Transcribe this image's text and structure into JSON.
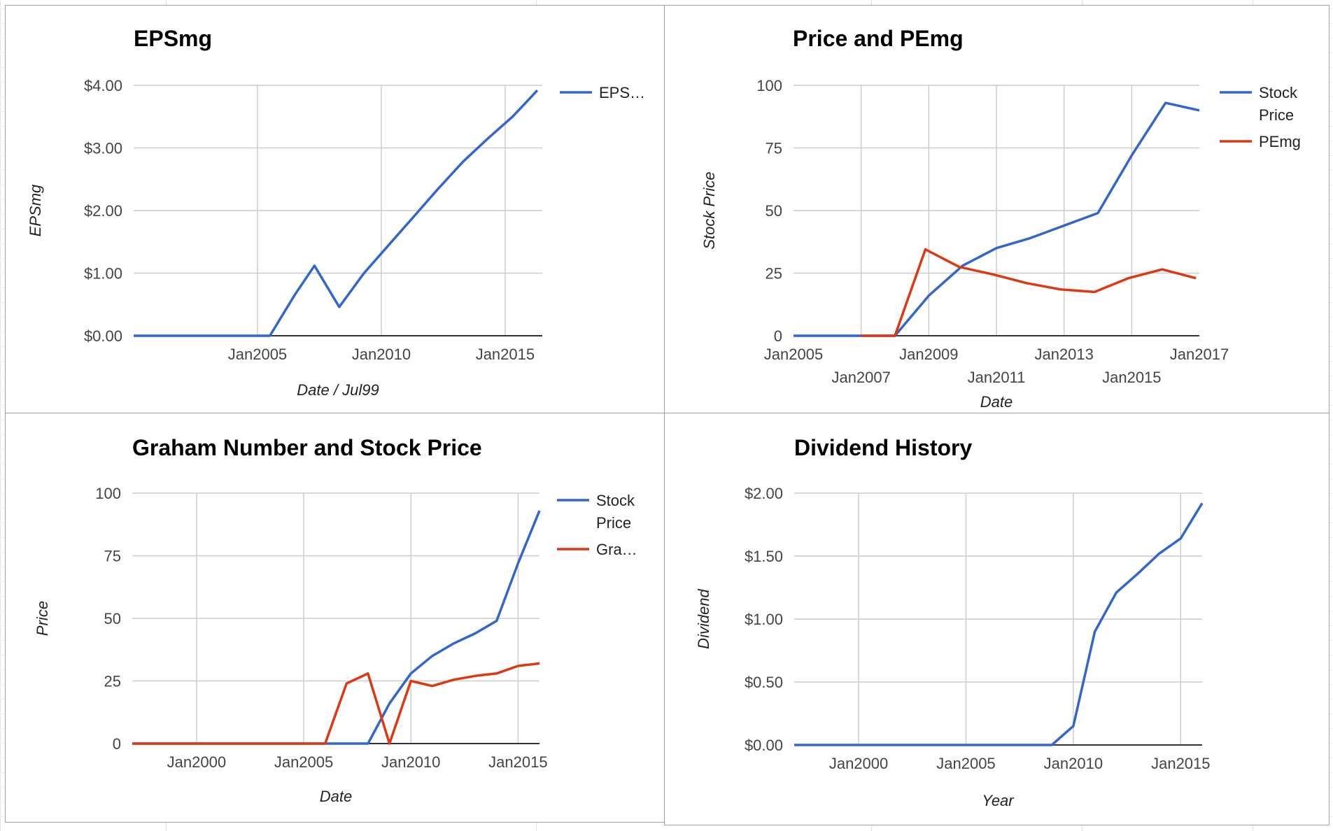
{
  "colors": {
    "blue": "#3366cc",
    "red": "#dc3912",
    "grid": "#cccccc",
    "baseline": "#333333"
  },
  "chart_data": [
    {
      "type": "line",
      "title": "EPSmg",
      "xlabel": "Date / Jul99",
      "ylabel": "EPSmg",
      "xlim": [
        2000,
        2016.5
      ],
      "ylim": [
        0,
        4
      ],
      "x_ticks": [
        {
          "x": 2005,
          "label": "Jan2005"
        },
        {
          "x": 2010,
          "label": "Jan2010"
        },
        {
          "x": 2015,
          "label": "Jan2015"
        }
      ],
      "y_ticks": [
        {
          "y": 0,
          "label": "$0.00"
        },
        {
          "y": 1,
          "label": "$1.00"
        },
        {
          "y": 2,
          "label": "$2.00"
        },
        {
          "y": 3,
          "label": "$3.00"
        },
        {
          "y": 4,
          "label": "$4.00"
        }
      ],
      "grid": true,
      "legend": "right",
      "series": [
        {
          "name": "EPS…",
          "color": "#3366cc",
          "x": [
            2000,
            2001,
            2002,
            2003,
            2004,
            2005,
            2005.5,
            2006.5,
            2007.3,
            2008.3,
            2009.3,
            2010.3,
            2011.3,
            2012.3,
            2013.3,
            2014.3,
            2015.3,
            2016.3
          ],
          "y": [
            0,
            0,
            0,
            0,
            0,
            0,
            0,
            0.65,
            1.12,
            0.46,
            1.0,
            1.45,
            1.9,
            2.35,
            2.78,
            3.15,
            3.5,
            3.92
          ]
        }
      ]
    },
    {
      "type": "line",
      "title": "Price and PEmg",
      "xlabel": "Date",
      "ylabel": "Stock Price",
      "xlim": [
        2005,
        2017
      ],
      "ylim": [
        0,
        100
      ],
      "x_ticks": [
        {
          "x": 2005,
          "label": "Jan2005"
        },
        {
          "x": 2007,
          "label": "Jan2007"
        },
        {
          "x": 2009,
          "label": "Jan2009"
        },
        {
          "x": 2011,
          "label": "Jan2011"
        },
        {
          "x": 2013,
          "label": "Jan2013"
        },
        {
          "x": 2015,
          "label": "Jan2015"
        },
        {
          "x": 2017,
          "label": "Jan2017"
        }
      ],
      "y_ticks": [
        {
          "y": 0,
          "label": "0"
        },
        {
          "y": 25,
          "label": "25"
        },
        {
          "y": 50,
          "label": "50"
        },
        {
          "y": 75,
          "label": "75"
        },
        {
          "y": 100,
          "label": "100"
        }
      ],
      "grid": true,
      "legend": "right",
      "series": [
        {
          "name": "Stock Price",
          "color": "#3366cc",
          "x": [
            2005,
            2006,
            2007,
            2007.5,
            2008,
            2009,
            2010,
            2011,
            2012,
            2013,
            2014,
            2015,
            2016,
            2017
          ],
          "y": [
            0,
            0,
            0,
            0,
            0,
            16,
            28,
            35,
            39,
            44,
            49,
            72,
            93,
            90
          ]
        },
        {
          "name": "PEmg",
          "color": "#dc3912",
          "x": [
            2007,
            2007.5,
            2008,
            2008.9,
            2009.9,
            2010.9,
            2011.9,
            2012.9,
            2013.9,
            2014.9,
            2015.9,
            2016.9
          ],
          "y": [
            0,
            0,
            0,
            34.5,
            27.5,
            24.5,
            21,
            18.5,
            17.5,
            23,
            26.5,
            23
          ]
        }
      ]
    },
    {
      "type": "line",
      "title": "Graham Number and Stock Price",
      "xlabel": "Date",
      "ylabel": "Price",
      "xlim": [
        1997,
        2016
      ],
      "ylim": [
        0,
        100
      ],
      "x_ticks": [
        {
          "x": 2000,
          "label": "Jan2000"
        },
        {
          "x": 2005,
          "label": "Jan2005"
        },
        {
          "x": 2010,
          "label": "Jan2010"
        },
        {
          "x": 2015,
          "label": "Jan2015"
        }
      ],
      "y_ticks": [
        {
          "y": 0,
          "label": "0"
        },
        {
          "y": 25,
          "label": "25"
        },
        {
          "y": 50,
          "label": "50"
        },
        {
          "y": 75,
          "label": "75"
        },
        {
          "y": 100,
          "label": "100"
        }
      ],
      "grid": true,
      "legend": "right",
      "series": [
        {
          "name": "Stock Price",
          "color": "#3366cc",
          "x": [
            1997,
            2000,
            2003,
            2006,
            2007,
            2008,
            2009,
            2010,
            2011,
            2012,
            2013,
            2014,
            2015,
            2016
          ],
          "y": [
            0,
            0,
            0,
            0,
            0,
            0,
            16,
            28,
            35,
            40,
            44,
            49,
            72,
            93
          ]
        },
        {
          "name": "Gra…",
          "color": "#dc3912",
          "x": [
            1997,
            2000,
            2003,
            2006,
            2007,
            2008,
            2009,
            2010,
            2011,
            2012,
            2013,
            2014,
            2015,
            2016
          ],
          "y": [
            0,
            0,
            0,
            0,
            24,
            28,
            0,
            25,
            23,
            25.5,
            27,
            28,
            31,
            32
          ]
        }
      ]
    },
    {
      "type": "line",
      "title": "Dividend History",
      "xlabel": "Year",
      "ylabel": "Dividend",
      "xlim": [
        1997,
        2016
      ],
      "ylim": [
        0,
        2
      ],
      "x_ticks": [
        {
          "x": 2000,
          "label": "Jan2000"
        },
        {
          "x": 2005,
          "label": "Jan2005"
        },
        {
          "x": 2010,
          "label": "Jan2010"
        },
        {
          "x": 2015,
          "label": "Jan2015"
        }
      ],
      "y_ticks": [
        {
          "y": 0,
          "label": "$0.00"
        },
        {
          "y": 0.5,
          "label": "$0.50"
        },
        {
          "y": 1,
          "label": "$1.00"
        },
        {
          "y": 1.5,
          "label": "$1.50"
        },
        {
          "y": 2,
          "label": "$2.00"
        }
      ],
      "grid": true,
      "legend": "none",
      "series": [
        {
          "name": "",
          "color": "#3366cc",
          "x": [
            1997,
            2000,
            2005,
            2008,
            2009,
            2010,
            2011,
            2012,
            2013,
            2014,
            2015,
            2016
          ],
          "y": [
            0,
            0,
            0,
            0,
            0,
            0.15,
            0.9,
            1.21,
            1.36,
            1.52,
            1.64,
            1.92
          ]
        }
      ]
    }
  ]
}
